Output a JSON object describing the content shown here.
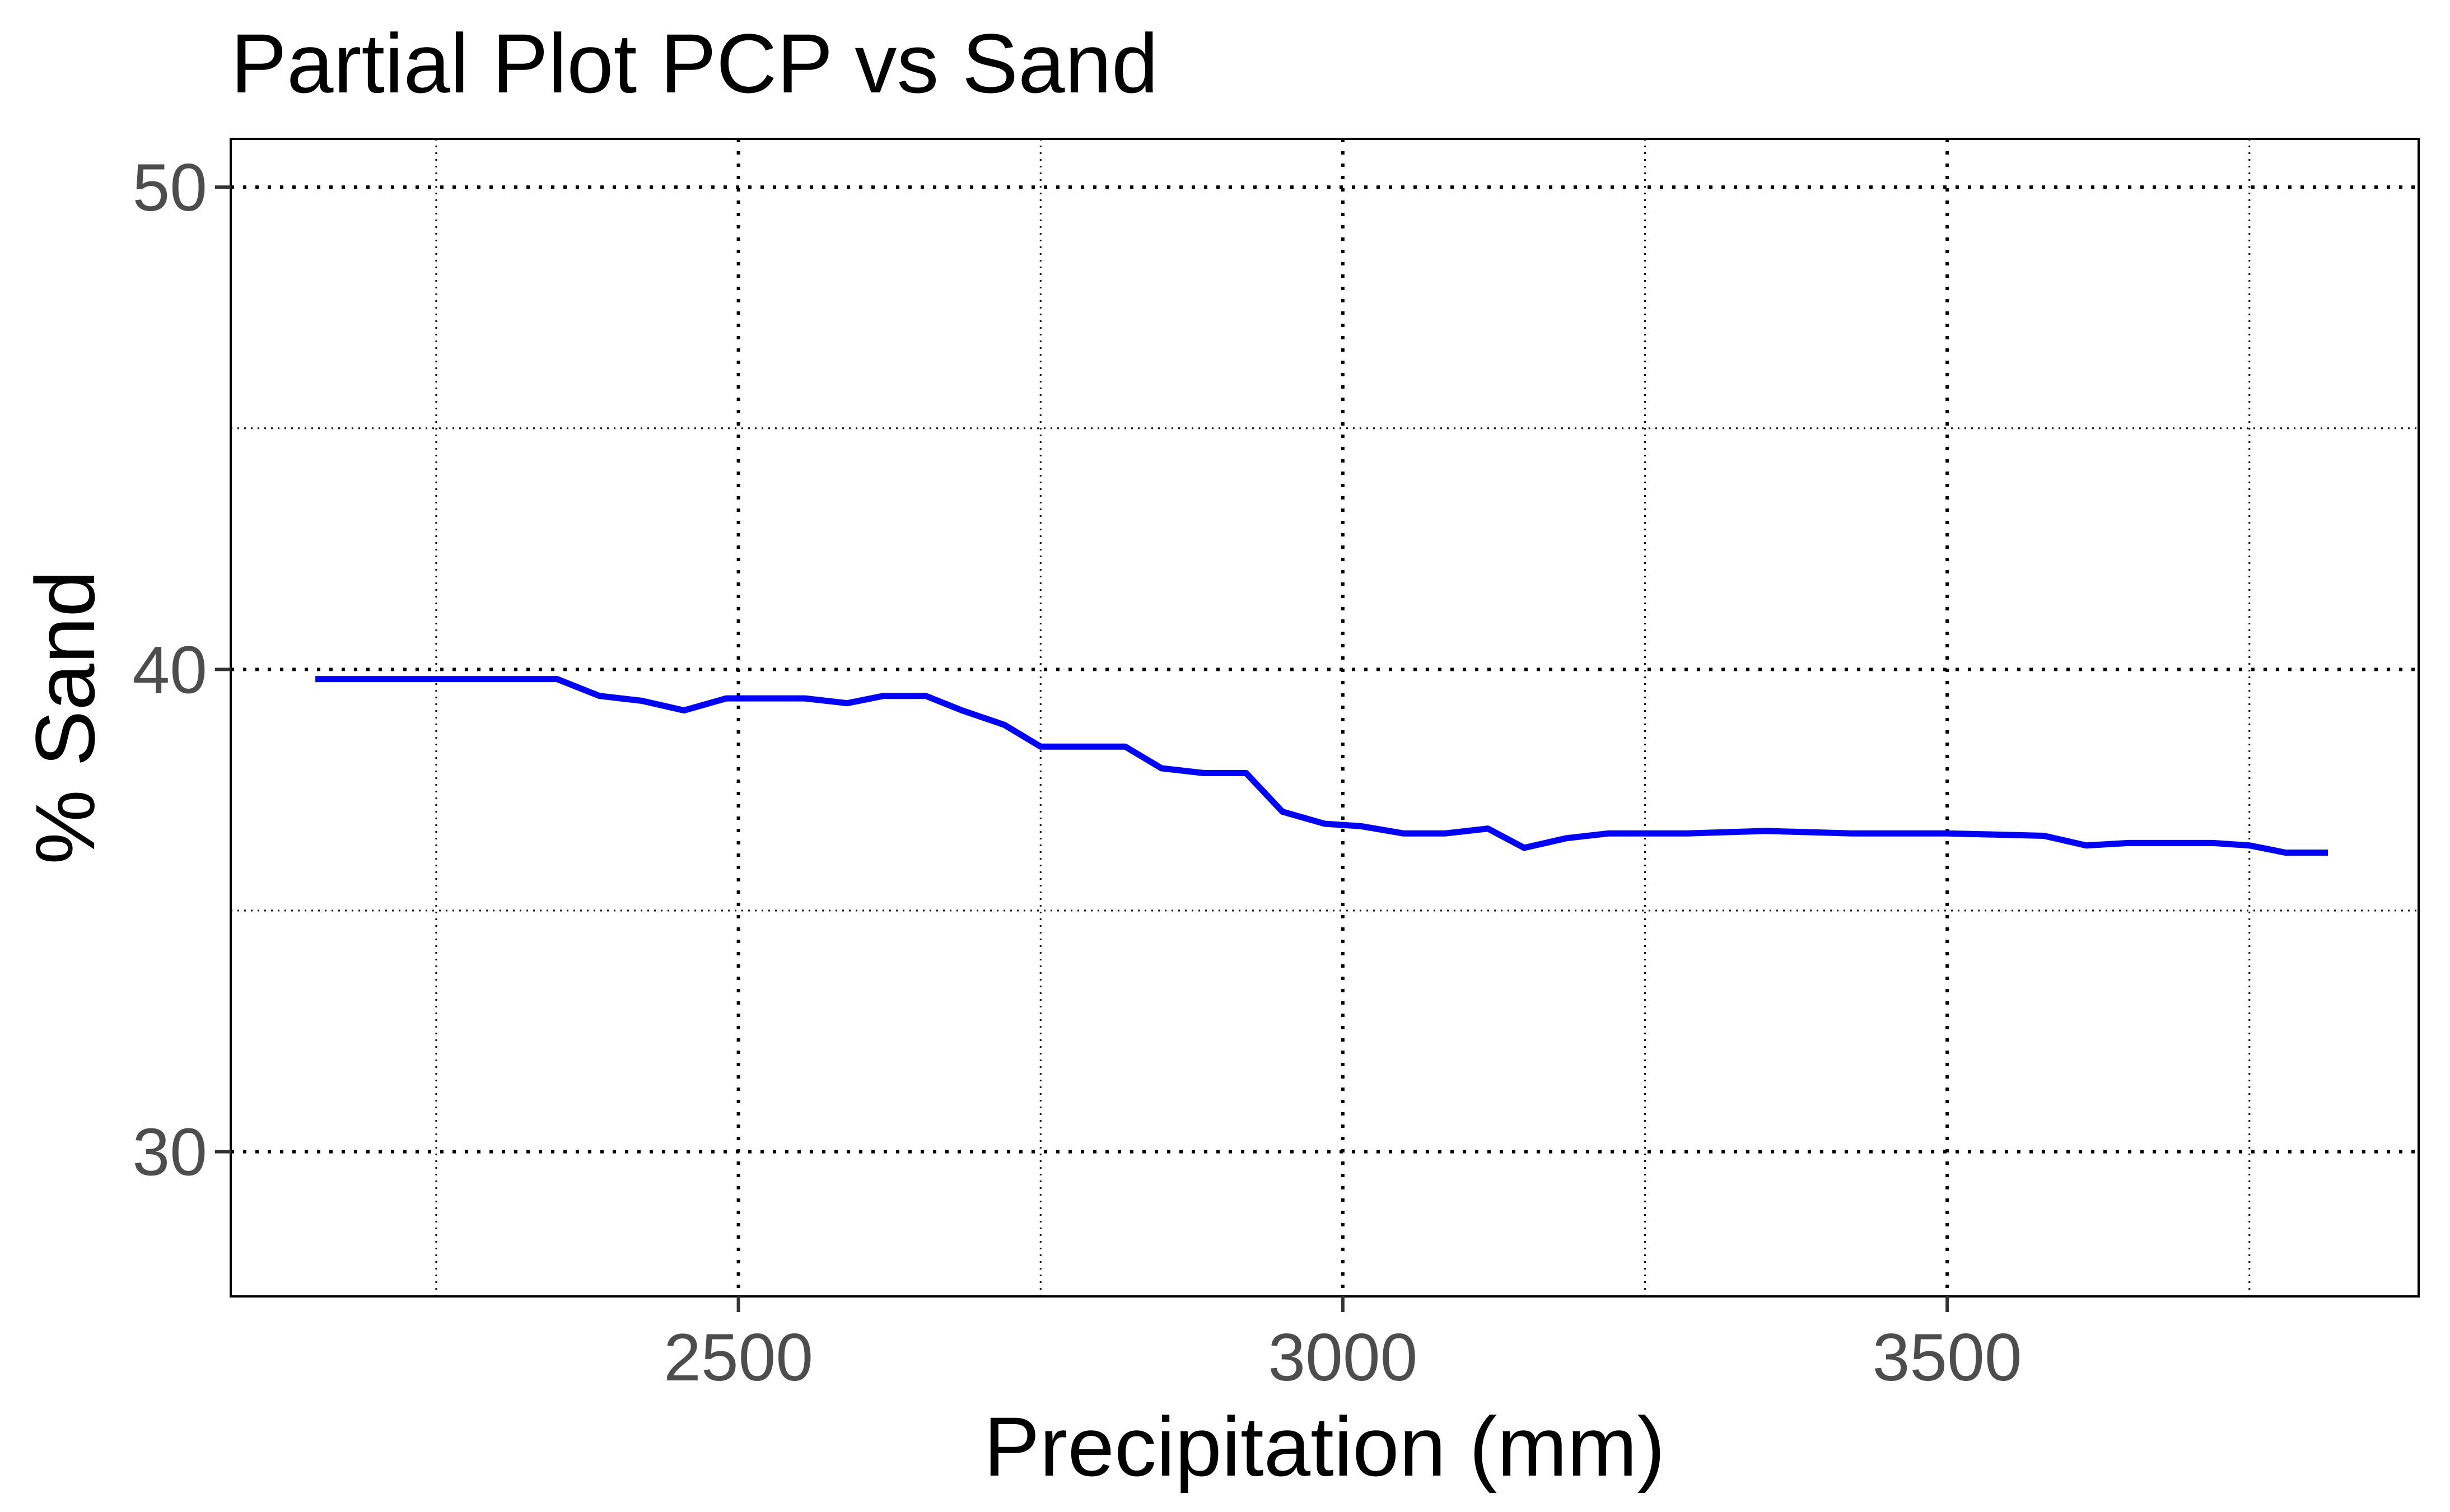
{
  "chart_data": {
    "type": "line",
    "title": "Partial Plot PCP vs Sand",
    "xlabel": "Precipitation (mm)",
    "ylabel": "% Sand",
    "xlim": [
      2080,
      3890
    ],
    "ylim": [
      27,
      51
    ],
    "x_ticks": [
      2500,
      3000,
      3500
    ],
    "x_tick_labels": [
      "2500",
      "3000",
      "3500"
    ],
    "x_minor_ticks": [
      2250,
      2750,
      3250,
      3750
    ],
    "y_ticks": [
      30,
      40,
      50
    ],
    "y_tick_labels": [
      "30",
      "40",
      "50"
    ],
    "y_minor_ticks": [
      35,
      45
    ],
    "grid": true,
    "grid_style": "dotted",
    "series": [
      {
        "color": "#0000ff",
        "x": [
          2150,
          2200,
          2250,
          2300,
          2350,
          2385,
          2420,
          2455,
          2490,
          2525,
          2555,
          2590,
          2620,
          2655,
          2685,
          2720,
          2750,
          2785,
          2820,
          2850,
          2885,
          2920,
          2950,
          2985,
          3015,
          3050,
          3085,
          3120,
          3150,
          3185,
          3220,
          3250,
          3285,
          3350,
          3420,
          3500,
          3580,
          3615,
          3650,
          3720,
          3750,
          3780,
          3815
        ],
        "values": [
          39.8,
          39.8,
          39.8,
          39.8,
          39.8,
          39.45,
          39.35,
          39.15,
          39.4,
          39.4,
          39.4,
          39.3,
          39.45,
          39.45,
          39.15,
          38.85,
          38.4,
          38.4,
          38.4,
          37.95,
          37.85,
          37.85,
          37.05,
          36.8,
          36.75,
          36.6,
          36.6,
          36.7,
          36.3,
          36.5,
          36.6,
          36.6,
          36.6,
          36.65,
          36.6,
          36.6,
          36.55,
          36.35,
          36.4,
          36.4,
          36.35,
          36.2,
          36.2
        ]
      }
    ]
  }
}
